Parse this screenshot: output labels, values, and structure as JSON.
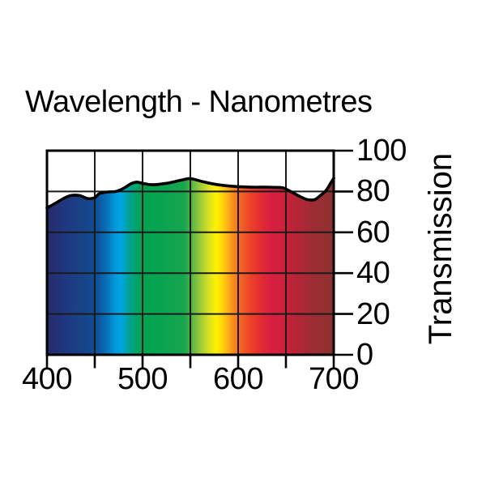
{
  "title": "Wavelength - Nanometres",
  "chart_data": {
    "type": "area",
    "title": "Wavelength - Nanometres",
    "xlabel": "Wavelength - Nanometres",
    "ylabel": "Transmission",
    "xlim": [
      400,
      700
    ],
    "ylim": [
      0,
      100
    ],
    "grid": true,
    "x_major_ticks": [
      400,
      450,
      500,
      550,
      600,
      650,
      700
    ],
    "x_tick_labels": [
      {
        "value": 400,
        "label": "400"
      },
      {
        "value": 500,
        "label": "500"
      },
      {
        "value": 600,
        "label": "600"
      },
      {
        "value": 700,
        "label": "700"
      }
    ],
    "y_ticks": [
      {
        "value": 0,
        "label": "0"
      },
      {
        "value": 20,
        "label": "20"
      },
      {
        "value": 40,
        "label": "40"
      },
      {
        "value": 60,
        "label": "60"
      },
      {
        "value": 80,
        "label": "80"
      },
      {
        "value": 100,
        "label": "100"
      }
    ],
    "series": [
      {
        "name": "transmission-percent",
        "x": [
          400,
          408,
          417,
          425,
          434,
          443,
          450,
          455,
          465,
          472,
          480,
          488,
          494,
          500,
          510,
          525,
          540,
          550,
          563,
          575,
          588,
          600,
          615,
          630,
          645,
          650,
          658,
          667,
          673,
          680,
          686,
          692,
          698,
          700
        ],
        "y": [
          72,
          74,
          76.5,
          78,
          78,
          76.5,
          77,
          79,
          79.8,
          80,
          81.5,
          83.8,
          84.6,
          84,
          83.3,
          84,
          85.5,
          86.3,
          84.8,
          83.6,
          82.8,
          82.4,
          82.1,
          82.1,
          81.9,
          81.2,
          79.2,
          77,
          76,
          76,
          78,
          80.5,
          85,
          86.5
        ]
      }
    ],
    "spectrum_gradient": [
      {
        "nm": 400,
        "color": "#282a6b"
      },
      {
        "nm": 422,
        "color": "#1e3a82"
      },
      {
        "nm": 440,
        "color": "#174488"
      },
      {
        "nm": 450,
        "color": "#0e4c94"
      },
      {
        "nm": 461,
        "color": "#0a6ab5"
      },
      {
        "nm": 472,
        "color": "#019bdd"
      },
      {
        "nm": 478,
        "color": "#00a5e0"
      },
      {
        "nm": 487,
        "color": "#00a38c"
      },
      {
        "nm": 496,
        "color": "#00a35c"
      },
      {
        "nm": 503,
        "color": "#00a351"
      },
      {
        "nm": 544,
        "color": "#17a64d"
      },
      {
        "nm": 551,
        "color": "#53b04a"
      },
      {
        "nm": 558,
        "color": "#8bc63e"
      },
      {
        "nm": 571,
        "color": "#e3e420"
      },
      {
        "nm": 577,
        "color": "#fff200"
      },
      {
        "nm": 583,
        "color": "#fed80e"
      },
      {
        "nm": 589,
        "color": "#fdb115"
      },
      {
        "nm": 596,
        "color": "#f6851e"
      },
      {
        "nm": 605,
        "color": "#f15b29"
      },
      {
        "nm": 614,
        "color": "#ee4025"
      },
      {
        "nm": 625,
        "color": "#e02a36"
      },
      {
        "nm": 634,
        "color": "#d81f3f"
      },
      {
        "nm": 649,
        "color": "#cd203c"
      },
      {
        "nm": 661,
        "color": "#b52536"
      },
      {
        "nm": 679,
        "color": "#9d2c33"
      },
      {
        "nm": 700,
        "color": "#8c3231"
      }
    ],
    "colors": {
      "curve": "#000000",
      "grid": "#1a1a1a",
      "border": "#000000",
      "tick": "#000000",
      "text": "#000000",
      "background": "#ffffff"
    }
  }
}
